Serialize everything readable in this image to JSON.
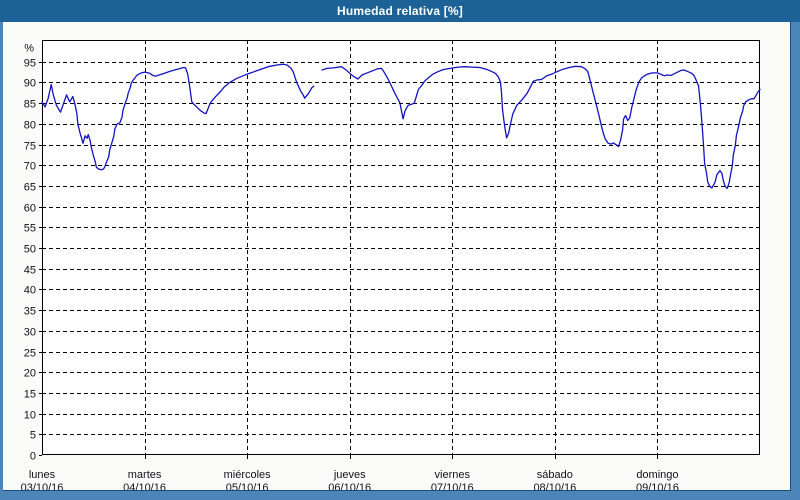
{
  "window": {
    "title": "Humedad relativa [%]"
  },
  "colors": {
    "titlebar_bg": "#1c6296",
    "frame_bg": "#4c86b8",
    "panel_bg": "#fbfcf9",
    "plot_bg": "#ffffff",
    "axis": "#000000",
    "grid": "#000000",
    "label": "#10101a",
    "line": "#1212c4"
  },
  "chart_data": {
    "type": "line",
    "title": "Humedad relativa [%]",
    "y_unit_label": "%",
    "ylim": [
      0,
      100.25
    ],
    "yticks": [
      0,
      5,
      10,
      15,
      20,
      25,
      30,
      35,
      40,
      45,
      50,
      55,
      60,
      65,
      70,
      75,
      80,
      85,
      90,
      95
    ],
    "grid": true,
    "x_axis_days": [
      {
        "name": "lunes",
        "date": "03/10/16"
      },
      {
        "name": "martes",
        "date": "04/10/16"
      },
      {
        "name": "miércoles",
        "date": "05/10/16"
      },
      {
        "name": "jueves",
        "date": "06/10/16"
      },
      {
        "name": "viernes",
        "date": "07/10/16"
      },
      {
        "name": "sábado",
        "date": "08/10/16"
      },
      {
        "name": "domingo",
        "date": "09/10/16"
      }
    ],
    "x_days_total": 7,
    "series": [
      {
        "name": "Humedad relativa",
        "color": "#1212c4",
        "segments": [
          [
            [
              0,
              85.3
            ],
            [
              0.03,
              84.1
            ],
            [
              0.06,
              86.2
            ],
            [
              0.09,
              89.5
            ],
            [
              0.11,
              87
            ],
            [
              0.14,
              84.5
            ],
            [
              0.18,
              82.8
            ],
            [
              0.21,
              84.9
            ],
            [
              0.24,
              87
            ],
            [
              0.26,
              85.8
            ],
            [
              0.27,
              85.3
            ],
            [
              0.3,
              86.6
            ],
            [
              0.32,
              84.9
            ],
            [
              0.34,
              82.4
            ],
            [
              0.35,
              79.9
            ],
            [
              0.37,
              77.8
            ],
            [
              0.39,
              76.2
            ],
            [
              0.4,
              75.3
            ],
            [
              0.42,
              77.1
            ],
            [
              0.44,
              76.5
            ],
            [
              0.45,
              77.4
            ],
            [
              0.47,
              75.9
            ],
            [
              0.48,
              74.5
            ],
            [
              0.5,
              72.4
            ],
            [
              0.52,
              70.8
            ],
            [
              0.53,
              69.5
            ],
            [
              0.55,
              69.1
            ],
            [
              0.58,
              68.9
            ],
            [
              0.6,
              69.1
            ],
            [
              0.61,
              69.5
            ],
            [
              0.63,
              70.8
            ],
            [
              0.65,
              72
            ],
            [
              0.66,
              73.7
            ],
            [
              0.68,
              75.3
            ],
            [
              0.7,
              77
            ],
            [
              0.71,
              78.7
            ],
            [
              0.73,
              79.9
            ],
            [
              0.76,
              80.3
            ],
            [
              0.78,
              81.6
            ],
            [
              0.79,
              83.3
            ],
            [
              0.81,
              84.9
            ],
            [
              0.83,
              86.2
            ],
            [
              0.84,
              87.4
            ],
            [
              0.86,
              88.7
            ],
            [
              0.87,
              89.8
            ],
            [
              0.89,
              90.6
            ],
            [
              0.91,
              91.2
            ],
            [
              0.92,
              91.6
            ],
            [
              0.94,
              92
            ],
            [
              0.97,
              92.3
            ],
            [
              1,
              92.5
            ],
            [
              1.05,
              92.2
            ],
            [
              1.08,
              91.7
            ],
            [
              1.11,
              91.5
            ],
            [
              1.14,
              91.8
            ],
            [
              1.18,
              92.1
            ],
            [
              1.25,
              92.7
            ],
            [
              1.32,
              93.2
            ],
            [
              1.38,
              93.6
            ],
            [
              1.4,
              93.5
            ],
            [
              1.42,
              92
            ],
            [
              1.44,
              89
            ],
            [
              1.46,
              85.3
            ],
            [
              1.49,
              84.5
            ],
            [
              1.54,
              83.3
            ],
            [
              1.58,
              82.6
            ],
            [
              1.6,
              82.5
            ],
            [
              1.64,
              85
            ],
            [
              1.69,
              86.5
            ],
            [
              1.74,
              87.8
            ],
            [
              1.78,
              89
            ],
            [
              1.83,
              90
            ],
            [
              1.9,
              91
            ],
            [
              1.96,
              91.6
            ],
            [
              2.01,
              92.1
            ],
            [
              2.08,
              92.7
            ],
            [
              2.15,
              93.3
            ],
            [
              2.22,
              93.9
            ],
            [
              2.29,
              94.2
            ],
            [
              2.35,
              94.4
            ],
            [
              2.39,
              94.2
            ],
            [
              2.43,
              93.4
            ],
            [
              2.45,
              92.5
            ],
            [
              2.48,
              90.2
            ],
            [
              2.52,
              88
            ],
            [
              2.55,
              86.8
            ],
            [
              2.56,
              86.2
            ],
            [
              2.6,
              87.4
            ],
            [
              2.63,
              88.7
            ],
            [
              2.65,
              89.1
            ]
          ],
          [
            [
              2.73,
              93
            ],
            [
              2.78,
              93.4
            ],
            [
              2.84,
              93.5
            ],
            [
              2.92,
              93.8
            ],
            [
              2.97,
              92.9
            ],
            [
              3,
              92.2
            ],
            [
              3.04,
              91.4
            ],
            [
              3.08,
              90.8
            ],
            [
              3.12,
              91.8
            ],
            [
              3.16,
              92.2
            ],
            [
              3.21,
              92.7
            ],
            [
              3.27,
              93.3
            ],
            [
              3.31,
              93.4
            ],
            [
              3.33,
              92.7
            ],
            [
              3.37,
              91
            ],
            [
              3.4,
              89.5
            ],
            [
              3.44,
              87.4
            ],
            [
              3.47,
              86
            ],
            [
              3.49,
              85
            ],
            [
              3.51,
              82.5
            ],
            [
              3.52,
              81.2
            ],
            [
              3.54,
              83.2
            ],
            [
              3.57,
              84.5
            ],
            [
              3.6,
              84.7
            ],
            [
              3.63,
              85
            ],
            [
              3.67,
              88.3
            ],
            [
              3.71,
              89.5
            ],
            [
              3.73,
              90.3
            ],
            [
              3.77,
              91.2
            ],
            [
              3.81,
              92
            ],
            [
              3.86,
              92.6
            ],
            [
              3.91,
              93.1
            ],
            [
              3.98,
              93.4
            ],
            [
              4.06,
              93.7
            ],
            [
              4.12,
              93.8
            ],
            [
              4.19,
              93.7
            ],
            [
              4.27,
              93.6
            ],
            [
              4.33,
              93.2
            ],
            [
              4.37,
              92.8
            ],
            [
              4.42,
              92.2
            ],
            [
              4.45,
              91.3
            ],
            [
              4.47,
              90
            ],
            [
              4.48,
              87.5
            ],
            [
              4.49,
              83.5
            ],
            [
              4.51,
              79.5
            ],
            [
              4.53,
              76.6
            ],
            [
              4.55,
              77.8
            ],
            [
              4.56,
              79.1
            ],
            [
              4.59,
              82.4
            ],
            [
              4.63,
              84.5
            ],
            [
              4.68,
              85.8
            ],
            [
              4.73,
              87.4
            ],
            [
              4.76,
              88.8
            ],
            [
              4.79,
              90.3
            ],
            [
              4.83,
              90.6
            ],
            [
              4.87,
              90.7
            ],
            [
              4.92,
              91.6
            ],
            [
              4.98,
              92.1
            ],
            [
              5.03,
              92.7
            ],
            [
              5.08,
              93.2
            ],
            [
              5.14,
              93.6
            ],
            [
              5.2,
              93.9
            ],
            [
              5.26,
              93.8
            ],
            [
              5.29,
              93.4
            ],
            [
              5.32,
              92.7
            ],
            [
              5.34,
              90.9
            ],
            [
              5.37,
              87.9
            ],
            [
              5.4,
              85
            ],
            [
              5.43,
              82
            ],
            [
              5.45,
              79.9
            ],
            [
              5.47,
              77.9
            ],
            [
              5.49,
              76.4
            ],
            [
              5.52,
              75.3
            ],
            [
              5.55,
              75.1
            ],
            [
              5.57,
              75.4
            ],
            [
              5.6,
              74.9
            ],
            [
              5.62,
              74.5
            ],
            [
              5.64,
              76
            ],
            [
              5.66,
              78.5
            ],
            [
              5.67,
              81.2
            ],
            [
              5.69,
              82
            ],
            [
              5.71,
              80.8
            ],
            [
              5.73,
              81.4
            ],
            [
              5.75,
              84
            ],
            [
              5.77,
              85.9
            ],
            [
              5.79,
              88
            ],
            [
              5.82,
              90.2
            ],
            [
              5.85,
              91.2
            ],
            [
              5.9,
              92
            ],
            [
              5.95,
              92.3
            ],
            [
              6,
              92.3
            ],
            [
              6.04,
              91.9
            ],
            [
              6.07,
              91.6
            ],
            [
              6.09,
              91.8
            ],
            [
              6.13,
              91.7
            ],
            [
              6.18,
              92.3
            ],
            [
              6.23,
              92.9
            ],
            [
              6.26,
              93
            ],
            [
              6.3,
              92.6
            ],
            [
              6.34,
              92.1
            ],
            [
              6.36,
              91.5
            ],
            [
              6.38,
              90.4
            ],
            [
              6.4,
              89.2
            ],
            [
              6.41,
              87
            ],
            [
              6.42,
              84.5
            ],
            [
              6.43,
              81.5
            ],
            [
              6.44,
              78
            ],
            [
              6.45,
              74.5
            ],
            [
              6.46,
              70.5
            ],
            [
              6.48,
              67.8
            ],
            [
              6.49,
              66
            ],
            [
              6.51,
              64.9
            ],
            [
              6.53,
              64.5
            ],
            [
              6.56,
              65.8
            ],
            [
              6.58,
              67.7
            ],
            [
              6.61,
              68.7
            ],
            [
              6.63,
              68
            ],
            [
              6.64,
              66.5
            ],
            [
              6.66,
              64.9
            ],
            [
              6.68,
              64.4
            ],
            [
              6.7,
              65.8
            ],
            [
              6.71,
              67.4
            ],
            [
              6.73,
              69.9
            ],
            [
              6.74,
              72.4
            ],
            [
              6.76,
              74.9
            ],
            [
              6.77,
              77.2
            ],
            [
              6.79,
              79.3
            ],
            [
              6.81,
              81.6
            ],
            [
              6.83,
              83
            ],
            [
              6.84,
              84.3
            ],
            [
              6.86,
              85.3
            ],
            [
              6.89,
              85.8
            ],
            [
              6.92,
              86.1
            ],
            [
              6.94,
              86
            ],
            [
              6.96,
              86.8
            ],
            [
              6.98,
              87.7
            ],
            [
              7,
              88.3
            ]
          ]
        ]
      }
    ],
    "legend": null
  }
}
